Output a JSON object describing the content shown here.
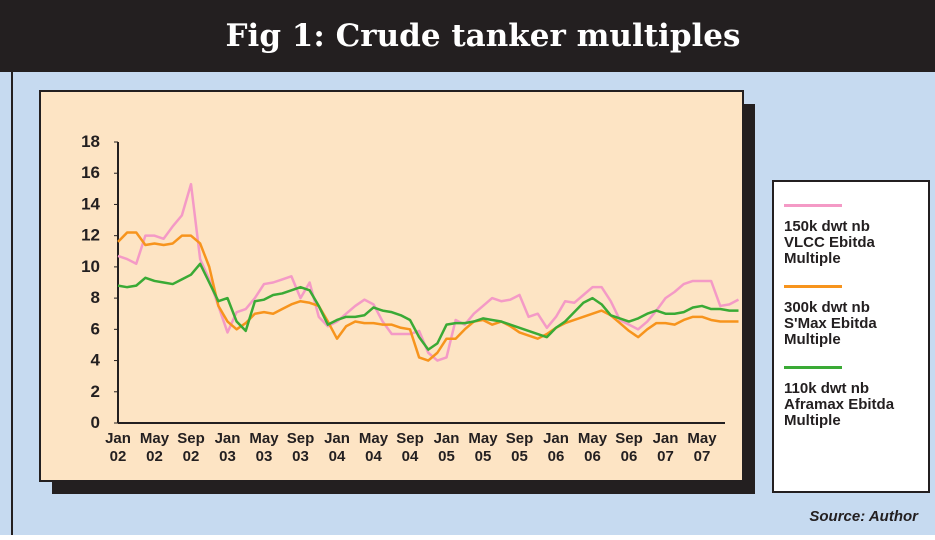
{
  "chart_data": {
    "type": "line",
    "title": "Fig 1: Crude tanker multiples",
    "source": "Source: Author",
    "categories": [
      "Jan 02",
      null,
      null,
      null,
      "May 02",
      null,
      null,
      null,
      "Sep 02",
      null,
      null,
      null,
      "Jan 03",
      null,
      null,
      null,
      "May 03",
      null,
      null,
      null,
      "Sep 03",
      null,
      null,
      null,
      "Jan 04",
      null,
      null,
      null,
      "May 04",
      null,
      null,
      null,
      "Sep 04",
      null,
      null,
      null,
      "Jan 05",
      null,
      null,
      null,
      "May 05",
      null,
      null,
      null,
      "Sep 05",
      null,
      null,
      null,
      "Jan 06",
      null,
      null,
      null,
      "May 06",
      null,
      null,
      null,
      "Sep 06",
      null,
      null,
      null,
      "Jan 07",
      null,
      null,
      null,
      "May 07",
      null,
      null,
      null,
      null
    ],
    "series": [
      {
        "name": "150k dwt nb VLCC Ebitda Multiple",
        "color": "#f49ac6",
        "values": [
          10.7,
          10.5,
          10.2,
          12.0,
          12.0,
          11.8,
          12.6,
          13.3,
          15.3,
          10.5,
          9.2,
          7.5,
          5.8,
          7.1,
          7.3,
          8.0,
          8.9,
          9.0,
          9.2,
          9.4,
          8.0,
          9.0,
          6.8,
          6.2,
          6.5,
          7.0,
          7.5,
          7.9,
          7.6,
          6.5,
          5.7,
          5.7,
          5.7,
          5.9,
          4.5,
          4.0,
          4.2,
          6.6,
          6.3,
          7.0,
          7.5,
          8.0,
          7.8,
          7.9,
          8.2,
          6.8,
          7.0,
          6.1,
          6.8,
          7.8,
          7.7,
          8.2,
          8.7,
          8.7,
          7.8,
          6.6,
          6.3,
          6.0,
          6.5,
          7.2,
          8.0,
          8.4,
          8.9,
          9.1,
          9.1,
          9.1,
          7.5,
          7.6,
          7.9
        ]
      },
      {
        "name": "300k dwt nb S'Max Ebitda Multiple",
        "color": "#f7941d",
        "values": [
          11.6,
          12.2,
          12.2,
          11.4,
          11.5,
          11.4,
          11.5,
          12.0,
          12.0,
          11.5,
          10.0,
          7.5,
          6.5,
          6.0,
          6.4,
          7.0,
          7.1,
          7.0,
          7.3,
          7.6,
          7.8,
          7.7,
          7.5,
          6.5,
          5.4,
          6.2,
          6.5,
          6.4,
          6.4,
          6.3,
          6.3,
          6.1,
          6.0,
          4.2,
          4.0,
          4.5,
          5.4,
          5.4,
          6.0,
          6.5,
          6.6,
          6.3,
          6.5,
          6.2,
          5.8,
          5.6,
          5.4,
          5.7,
          6.1,
          6.4,
          6.6,
          6.8,
          7.0,
          7.2,
          6.9,
          6.4,
          5.9,
          5.5,
          6.0,
          6.4,
          6.4,
          6.3,
          6.6,
          6.8,
          6.8,
          6.6,
          6.5,
          6.5,
          6.5
        ]
      },
      {
        "name": "110k dwt nb Aframax Ebitda Multiple",
        "color": "#3aaa35",
        "values": [
          8.8,
          8.7,
          8.8,
          9.3,
          9.1,
          9.0,
          8.9,
          9.2,
          9.5,
          10.2,
          9.0,
          7.8,
          8.0,
          6.5,
          5.9,
          7.8,
          7.9,
          8.2,
          8.3,
          8.5,
          8.7,
          8.5,
          7.5,
          6.3,
          6.6,
          6.8,
          6.8,
          6.9,
          7.4,
          7.2,
          7.1,
          6.9,
          6.6,
          5.5,
          4.7,
          5.1,
          6.3,
          6.4,
          6.4,
          6.5,
          6.7,
          6.6,
          6.5,
          6.3,
          6.1,
          5.9,
          5.7,
          5.5,
          6.1,
          6.5,
          7.1,
          7.7,
          8.0,
          7.6,
          6.9,
          6.7,
          6.5,
          6.7,
          7.0,
          7.2,
          7.0,
          7.0,
          7.1,
          7.4,
          7.5,
          7.3,
          7.3,
          7.2,
          7.2
        ]
      }
    ],
    "ylim": [
      0,
      18
    ],
    "yticks": [
      0,
      2,
      4,
      6,
      8,
      10,
      12,
      14,
      16,
      18
    ],
    "grid": false,
    "legend": "right"
  }
}
